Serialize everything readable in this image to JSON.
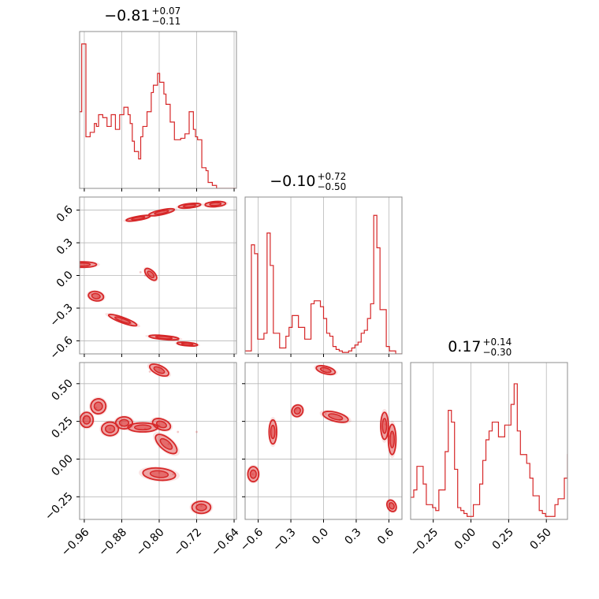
{
  "chart_data": {
    "type": "corner",
    "color": "#d62728",
    "grid": true,
    "parameters": [
      {
        "median": "−0.81",
        "plus": "+0.07",
        "minus": "−0.11",
        "range": [
          -0.97,
          -0.635
        ],
        "ticks": [
          -0.96,
          -0.88,
          -0.8,
          -0.72,
          -0.64
        ],
        "tick_labels": [
          "−0.96",
          "−0.88",
          "−0.80",
          "−0.72",
          "−0.64"
        ],
        "histogram": {
          "start": -0.97,
          "bin_width": 0.0045,
          "counts": [
            0.52,
            0.98,
            0.98,
            0.35,
            0.35,
            0.38,
            0.38,
            0.44,
            0.42,
            0.5,
            0.5,
            0.48,
            0.48,
            0.42,
            0.42,
            0.5,
            0.5,
            0.4,
            0.4,
            0.5,
            0.5,
            0.55,
            0.55,
            0.5,
            0.44,
            0.32,
            0.25,
            0.25,
            0.2,
            0.35,
            0.42,
            0.42,
            0.52,
            0.52,
            0.65,
            0.7,
            0.7,
            0.78,
            0.72,
            0.72,
            0.64,
            0.57,
            0.57,
            0.45,
            0.45,
            0.33,
            0.33,
            0.33,
            0.34,
            0.34,
            0.37,
            0.37,
            0.52,
            0.52,
            0.4,
            0.35,
            0.33,
            0.33,
            0.14,
            0.14,
            0.12,
            0.04,
            0.04,
            0.02,
            0.02,
            0.0,
            0.0,
            0.0,
            0.0,
            0.0,
            0.0,
            0.0,
            0.0,
            0.0,
            0.0
          ]
        }
      },
      {
        "median": "−0.10",
        "plus": "+0.72",
        "minus": "−0.50",
        "range": [
          -0.72,
          0.72
        ],
        "ticks": [
          -0.6,
          -0.3,
          0.0,
          0.3,
          0.6
        ],
        "tick_labels": [
          "−0.6",
          "−0.3",
          "0.0",
          "0.3",
          "0.6"
        ],
        "tick_labels_y": [
          "−0.6",
          "−0.3",
          "0.0",
          "0.3",
          "0.6"
        ],
        "histogram": {
          "start": -0.72,
          "bin_width": 0.0288,
          "counts": [
            0.02,
            0.02,
            0.74,
            0.68,
            0.1,
            0.1,
            0.14,
            0.82,
            0.6,
            0.14,
            0.14,
            0.04,
            0.04,
            0.12,
            0.18,
            0.26,
            0.26,
            0.18,
            0.18,
            0.1,
            0.1,
            0.34,
            0.36,
            0.36,
            0.32,
            0.24,
            0.14,
            0.12,
            0.05,
            0.03,
            0.02,
            0.01,
            0.01,
            0.02,
            0.04,
            0.06,
            0.08,
            0.14,
            0.16,
            0.24,
            0.34,
            0.94,
            0.72,
            0.3,
            0.3,
            0.05,
            0.02,
            0.02,
            0.0,
            0.0
          ]
        }
      },
      {
        "median": "0.17",
        "plus": "+0.14",
        "minus": "−0.30",
        "range": [
          -0.4,
          0.64
        ],
        "ticks": [
          -0.25,
          0.0,
          0.25,
          0.5
        ],
        "tick_labels": [
          "−0.25",
          "0.00",
          "0.25",
          "0.50"
        ],
        "tick_labels_y": [
          "−0.25",
          "0.00",
          "0.25",
          "0.50"
        ],
        "histogram": {
          "start": -0.4,
          "bin_width": 0.0208,
          "counts": [
            0.15,
            0.2,
            0.36,
            0.36,
            0.24,
            0.1,
            0.1,
            0.08,
            0.06,
            0.2,
            0.2,
            0.46,
            0.74,
            0.66,
            0.34,
            0.08,
            0.06,
            0.04,
            0.02,
            0.02,
            0.1,
            0.1,
            0.24,
            0.4,
            0.54,
            0.6,
            0.66,
            0.66,
            0.56,
            0.56,
            0.64,
            0.64,
            0.78,
            0.92,
            0.6,
            0.44,
            0.44,
            0.38,
            0.28,
            0.16,
            0.16,
            0.06,
            0.04,
            0.02,
            0.02,
            0.02,
            0.1,
            0.14,
            0.14,
            0.28,
            0.44,
            0.3,
            0.06
          ]
        }
      }
    ],
    "scatter_clusters": [
      {
        "panel": [
          1,
          0
        ],
        "points": [
          [
            -0.965,
            0.12
          ],
          [
            -0.945,
            -0.17
          ],
          [
            -0.88,
            -0.4
          ],
          [
            -0.83,
            0.0
          ],
          [
            -0.8,
            -0.55
          ],
          [
            -0.76,
            -0.6
          ],
          [
            -0.86,
            0.52
          ],
          [
            -0.82,
            0.55
          ],
          [
            -0.79,
            0.59
          ],
          [
            -0.75,
            0.63
          ],
          [
            -0.7,
            0.66
          ],
          [
            -0.675,
            0.67
          ],
          [
            -0.84,
            0.03
          ],
          [
            -0.93,
            -0.2
          ],
          [
            -0.86,
            -0.44
          ]
        ]
      },
      {
        "panel": [
          2,
          0
        ],
        "points": [
          [
            -0.96,
            0.27
          ],
          [
            -0.935,
            0.34
          ],
          [
            -0.905,
            0.2
          ],
          [
            -0.88,
            0.22
          ],
          [
            -0.83,
            0.2
          ],
          [
            -0.8,
            0.22
          ],
          [
            -0.76,
            0.18
          ],
          [
            -0.78,
            0.1
          ],
          [
            -0.8,
            -0.09
          ],
          [
            -0.77,
            -0.1
          ],
          [
            -0.82,
            0.58
          ],
          [
            -0.795,
            0.61
          ],
          [
            -0.71,
            -0.31
          ],
          [
            -0.72,
            0.18
          ]
        ]
      },
      {
        "panel": [
          2,
          1
        ],
        "points": [
          [
            -0.65,
            -0.1
          ],
          [
            -0.47,
            0.22
          ],
          [
            -0.47,
            0.14
          ],
          [
            -0.25,
            0.33
          ],
          [
            -0.22,
            0.3
          ],
          [
            0.0,
            0.61
          ],
          [
            0.05,
            0.58
          ],
          [
            0.02,
            0.3
          ],
          [
            0.15,
            0.26
          ],
          [
            0.57,
            0.23
          ],
          [
            0.61,
            0.15
          ],
          [
            0.63,
            0.17
          ],
          [
            0.61,
            -0.3
          ]
        ]
      }
    ],
    "contours": [
      {
        "panel": [
          1,
          0
        ],
        "cx": -0.964,
        "cy": 0.1,
        "rx": 0.006,
        "ry": 0.13,
        "angle": 90
      },
      {
        "panel": [
          1,
          0
        ],
        "cx": -0.935,
        "cy": -0.19,
        "rx": 0.01,
        "ry": 0.07,
        "angle": 80
      },
      {
        "panel": [
          1,
          0
        ],
        "cx": -0.878,
        "cy": -0.41,
        "rx": 0.032,
        "ry": 0.025,
        "angle": -20
      },
      {
        "panel": [
          1,
          0
        ],
        "cx": -0.818,
        "cy": 0.01,
        "rx": 0.016,
        "ry": 0.035,
        "angle": -45
      },
      {
        "panel": [
          1,
          0
        ],
        "cx": -0.79,
        "cy": -0.57,
        "rx": 0.032,
        "ry": 0.018,
        "angle": -5
      },
      {
        "panel": [
          1,
          0
        ],
        "cx": -0.74,
        "cy": -0.63,
        "rx": 0.022,
        "ry": 0.016,
        "angle": -5
      },
      {
        "panel": [
          1,
          0
        ],
        "cx": -0.845,
        "cy": 0.525,
        "rx": 0.026,
        "ry": 0.018,
        "angle": 10
      },
      {
        "panel": [
          1,
          0
        ],
        "cx": -0.795,
        "cy": 0.58,
        "rx": 0.028,
        "ry": 0.022,
        "angle": 12
      },
      {
        "panel": [
          1,
          0
        ],
        "cx": -0.735,
        "cy": 0.64,
        "rx": 0.024,
        "ry": 0.02,
        "angle": 6
      },
      {
        "panel": [
          1,
          0
        ],
        "cx": -0.68,
        "cy": 0.655,
        "rx": 0.022,
        "ry": 0.024,
        "angle": 4
      },
      {
        "panel": [
          2,
          0
        ],
        "cx": -0.955,
        "cy": 0.26,
        "rx": 0.014,
        "ry": 0.05,
        "angle": 0
      },
      {
        "panel": [
          2,
          0
        ],
        "cx": -0.93,
        "cy": 0.35,
        "rx": 0.016,
        "ry": 0.05,
        "angle": -35
      },
      {
        "panel": [
          2,
          0
        ],
        "cx": -0.905,
        "cy": 0.2,
        "rx": 0.018,
        "ry": 0.045,
        "angle": 0
      },
      {
        "panel": [
          2,
          0
        ],
        "cx": -0.875,
        "cy": 0.24,
        "rx": 0.018,
        "ry": 0.04,
        "angle": 0
      },
      {
        "panel": [
          2,
          0
        ],
        "cx": -0.835,
        "cy": 0.21,
        "rx": 0.032,
        "ry": 0.03,
        "angle": 0
      },
      {
        "panel": [
          2,
          0
        ],
        "cx": -0.795,
        "cy": 0.23,
        "rx": 0.02,
        "ry": 0.035,
        "angle": -20
      },
      {
        "panel": [
          2,
          0
        ],
        "cx": -0.785,
        "cy": 0.1,
        "rx": 0.028,
        "ry": 0.04,
        "angle": -40
      },
      {
        "panel": [
          2,
          0
        ],
        "cx": -0.8,
        "cy": -0.1,
        "rx": 0.035,
        "ry": 0.04,
        "angle": -5
      },
      {
        "panel": [
          2,
          0
        ],
        "cx": -0.8,
        "cy": 0.59,
        "rx": 0.022,
        "ry": 0.03,
        "angle": -25
      },
      {
        "panel": [
          2,
          0
        ],
        "cx": -0.71,
        "cy": -0.32,
        "rx": 0.02,
        "ry": 0.04,
        "angle": 0
      },
      {
        "panel": [
          2,
          1
        ],
        "cx": -0.645,
        "cy": -0.1,
        "rx": 0.05,
        "ry": 0.05,
        "angle": 0
      },
      {
        "panel": [
          2,
          1
        ],
        "cx": -0.465,
        "cy": 0.18,
        "rx": 0.035,
        "ry": 0.08,
        "angle": 0
      },
      {
        "panel": [
          2,
          1
        ],
        "cx": -0.24,
        "cy": 0.32,
        "rx": 0.05,
        "ry": 0.04,
        "angle": -30
      },
      {
        "panel": [
          2,
          1
        ],
        "cx": 0.02,
        "cy": 0.59,
        "rx": 0.09,
        "ry": 0.025,
        "angle": -15
      },
      {
        "panel": [
          2,
          1
        ],
        "cx": 0.11,
        "cy": 0.28,
        "rx": 0.12,
        "ry": 0.03,
        "angle": -15
      },
      {
        "panel": [
          2,
          1
        ],
        "cx": 0.56,
        "cy": 0.22,
        "rx": 0.035,
        "ry": 0.09,
        "angle": 0
      },
      {
        "panel": [
          2,
          1
        ],
        "cx": 0.63,
        "cy": 0.13,
        "rx": 0.035,
        "ry": 0.1,
        "angle": 0
      },
      {
        "panel": [
          2,
          1
        ],
        "cx": 0.625,
        "cy": -0.31,
        "rx": 0.04,
        "ry": 0.04,
        "angle": 25
      }
    ]
  }
}
